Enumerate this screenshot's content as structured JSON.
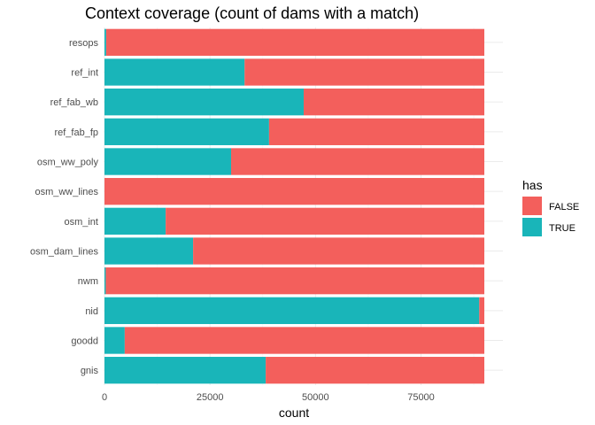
{
  "chart_data": {
    "type": "bar",
    "orientation": "horizontal",
    "stacked": true,
    "title": "Context coverage (count of dams with a match)",
    "xlabel": "count",
    "ylabel": "",
    "xlim": [
      0,
      90000
    ],
    "x_ticks": [
      0,
      25000,
      50000,
      75000
    ],
    "x_tick_labels": [
      "0",
      "25000",
      "50000",
      "75000"
    ],
    "grid": true,
    "legend": {
      "title": "has",
      "position": "right"
    },
    "categories": [
      "resops",
      "ref_int",
      "ref_fab_wb",
      "ref_fab_fp",
      "osm_ww_poly",
      "osm_ww_lines",
      "osm_int",
      "osm_dam_lines",
      "nwm",
      "nid",
      "goodd",
      "gnis"
    ],
    "series": [
      {
        "name": "TRUE",
        "color": "#19b5b9",
        "values": [
          400,
          33200,
          47200,
          39000,
          30000,
          0,
          14500,
          21000,
          300,
          88800,
          4800,
          38200
        ]
      },
      {
        "name": "FALSE",
        "color": "#f35f5c",
        "values": [
          89600,
          56800,
          42800,
          51000,
          60000,
          90000,
          75500,
          69000,
          89700,
          1200,
          85200,
          51800
        ]
      }
    ]
  }
}
